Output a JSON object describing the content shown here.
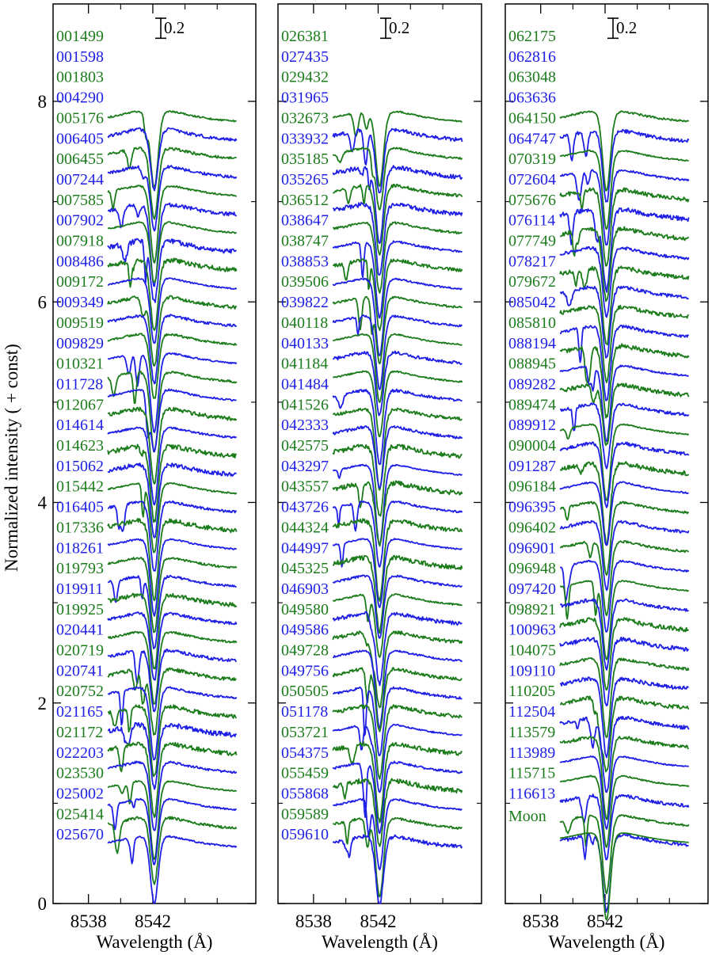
{
  "chart_data": {
    "type": "line",
    "ylabel": "Normalized intensity ( + const)",
    "xlabel": "Wavelength (Å)",
    "y_ticks": [
      {
        "value": 0,
        "label": "0"
      },
      {
        "value": 2,
        "label": "2"
      },
      {
        "value": 4,
        "label": "4"
      },
      {
        "value": 6,
        "label": "6"
      },
      {
        "value": 8,
        "label": "8"
      }
    ],
    "ylim": [
      0,
      8.95
    ],
    "xlim": [
      8535.8,
      8548.4
    ],
    "x_ticks": [
      8538,
      8542
    ],
    "x_minor_ticks": [
      8540,
      8544,
      8546
    ],
    "scale_bar": {
      "value": 0.2,
      "label": "0.2"
    },
    "colors": {
      "green": "#1c7c1c",
      "blue": "#1f1fe6",
      "axis": "#000000"
    },
    "panels": [
      {
        "series": [
          {
            "name": "001499",
            "color": "green"
          },
          {
            "name": "001598",
            "color": "blue"
          },
          {
            "name": "001803",
            "color": "green"
          },
          {
            "name": "004290",
            "color": "blue"
          },
          {
            "name": "005176",
            "color": "green"
          },
          {
            "name": "006405",
            "color": "blue"
          },
          {
            "name": "006455",
            "color": "green"
          },
          {
            "name": "007244",
            "color": "blue"
          },
          {
            "name": "007585",
            "color": "green"
          },
          {
            "name": "007902",
            "color": "blue"
          },
          {
            "name": "007918",
            "color": "green"
          },
          {
            "name": "008486",
            "color": "blue"
          },
          {
            "name": "009172",
            "color": "green"
          },
          {
            "name": "009349",
            "color": "blue"
          },
          {
            "name": "009519",
            "color": "green"
          },
          {
            "name": "009829",
            "color": "blue"
          },
          {
            "name": "010321",
            "color": "green"
          },
          {
            "name": "011728",
            "color": "blue"
          },
          {
            "name": "012067",
            "color": "green"
          },
          {
            "name": "014614",
            "color": "blue"
          },
          {
            "name": "014623",
            "color": "green"
          },
          {
            "name": "015062",
            "color": "blue"
          },
          {
            "name": "015442",
            "color": "green"
          },
          {
            "name": "016405",
            "color": "blue"
          },
          {
            "name": "017336",
            "color": "green"
          },
          {
            "name": "018261",
            "color": "blue"
          },
          {
            "name": "019793",
            "color": "green"
          },
          {
            "name": "019911",
            "color": "blue"
          },
          {
            "name": "019925",
            "color": "green"
          },
          {
            "name": "020441",
            "color": "blue"
          },
          {
            "name": "020719",
            "color": "green"
          },
          {
            "name": "020741",
            "color": "blue"
          },
          {
            "name": "020752",
            "color": "green"
          },
          {
            "name": "021165",
            "color": "blue"
          },
          {
            "name": "021172",
            "color": "green"
          },
          {
            "name": "022203",
            "color": "blue"
          },
          {
            "name": "023530",
            "color": "green"
          },
          {
            "name": "025002",
            "color": "blue"
          },
          {
            "name": "025414",
            "color": "green"
          },
          {
            "name": "025670",
            "color": "blue"
          }
        ]
      },
      {
        "series": [
          {
            "name": "026381",
            "color": "green"
          },
          {
            "name": "027435",
            "color": "blue"
          },
          {
            "name": "029432",
            "color": "green"
          },
          {
            "name": "031965",
            "color": "blue"
          },
          {
            "name": "032673",
            "color": "green"
          },
          {
            "name": "033932",
            "color": "blue"
          },
          {
            "name": "035185",
            "color": "green"
          },
          {
            "name": "035265",
            "color": "blue"
          },
          {
            "name": "036512",
            "color": "green"
          },
          {
            "name": "038647",
            "color": "blue"
          },
          {
            "name": "038747",
            "color": "green"
          },
          {
            "name": "038853",
            "color": "blue"
          },
          {
            "name": "039506",
            "color": "green"
          },
          {
            "name": "039822",
            "color": "blue"
          },
          {
            "name": "040118",
            "color": "green"
          },
          {
            "name": "040133",
            "color": "blue"
          },
          {
            "name": "041184",
            "color": "green"
          },
          {
            "name": "041484",
            "color": "blue"
          },
          {
            "name": "041526",
            "color": "green"
          },
          {
            "name": "042333",
            "color": "blue"
          },
          {
            "name": "042575",
            "color": "green"
          },
          {
            "name": "043297",
            "color": "blue"
          },
          {
            "name": "043557",
            "color": "green"
          },
          {
            "name": "043726",
            "color": "blue"
          },
          {
            "name": "044324",
            "color": "green"
          },
          {
            "name": "044997",
            "color": "blue"
          },
          {
            "name": "045325",
            "color": "green"
          },
          {
            "name": "046903",
            "color": "blue"
          },
          {
            "name": "049580",
            "color": "green"
          },
          {
            "name": "049586",
            "color": "blue"
          },
          {
            "name": "049728",
            "color": "green"
          },
          {
            "name": "049756",
            "color": "blue"
          },
          {
            "name": "050505",
            "color": "green"
          },
          {
            "name": "051178",
            "color": "blue"
          },
          {
            "name": "053721",
            "color": "green"
          },
          {
            "name": "054375",
            "color": "blue"
          },
          {
            "name": "055459",
            "color": "green"
          },
          {
            "name": "055868",
            "color": "blue"
          },
          {
            "name": "059589",
            "color": "green"
          },
          {
            "name": "059610",
            "color": "blue"
          }
        ]
      },
      {
        "series": [
          {
            "name": "062175",
            "color": "green"
          },
          {
            "name": "062816",
            "color": "blue"
          },
          {
            "name": "063048",
            "color": "green"
          },
          {
            "name": "063636",
            "color": "blue"
          },
          {
            "name": "064150",
            "color": "green"
          },
          {
            "name": "064747",
            "color": "blue"
          },
          {
            "name": "070319",
            "color": "green"
          },
          {
            "name": "072604",
            "color": "blue"
          },
          {
            "name": "075676",
            "color": "green"
          },
          {
            "name": "076114",
            "color": "blue"
          },
          {
            "name": "077749",
            "color": "green"
          },
          {
            "name": "078217",
            "color": "blue"
          },
          {
            "name": "079672",
            "color": "green"
          },
          {
            "name": "085042",
            "color": "blue"
          },
          {
            "name": "085810",
            "color": "green"
          },
          {
            "name": "088194",
            "color": "blue"
          },
          {
            "name": "088945",
            "color": "green"
          },
          {
            "name": "089282",
            "color": "blue"
          },
          {
            "name": "089474",
            "color": "green"
          },
          {
            "name": "089912",
            "color": "blue"
          },
          {
            "name": "090004",
            "color": "green"
          },
          {
            "name": "091287",
            "color": "blue"
          },
          {
            "name": "096184",
            "color": "green"
          },
          {
            "name": "096395",
            "color": "blue"
          },
          {
            "name": "096402",
            "color": "green"
          },
          {
            "name": "096901",
            "color": "blue"
          },
          {
            "name": "096948",
            "color": "green"
          },
          {
            "name": "097420",
            "color": "blue"
          },
          {
            "name": "098921",
            "color": "green"
          },
          {
            "name": "100963",
            "color": "blue"
          },
          {
            "name": "104075",
            "color": "green"
          },
          {
            "name": "109110",
            "color": "blue"
          },
          {
            "name": "110205",
            "color": "green"
          },
          {
            "name": "112504",
            "color": "blue"
          },
          {
            "name": "113579",
            "color": "green"
          },
          {
            "name": "113989",
            "color": "blue"
          },
          {
            "name": "115715",
            "color": "green"
          },
          {
            "name": "116613",
            "color": "blue"
          },
          {
            "name": "Moon",
            "color": "green"
          }
        ]
      }
    ]
  }
}
